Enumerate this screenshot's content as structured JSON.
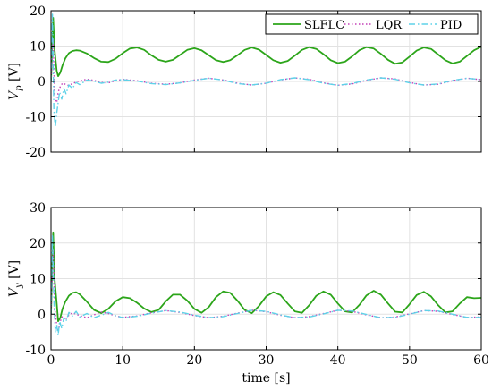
{
  "chart_data": [
    {
      "type": "line",
      "ylabel_main": "V",
      "ylabel_sub": "p",
      "ylabel_unit": "[V]",
      "xlabel": "",
      "xlim": [
        0,
        60
      ],
      "ylim": [
        -20,
        20
      ],
      "xticks": [
        0,
        10,
        20,
        30,
        40,
        50,
        60
      ],
      "xtick_labels_visible": false,
      "yticks": [
        -20,
        -10,
        0,
        10,
        20
      ],
      "ytick_labels": [
        "-20",
        "-10",
        "0",
        "10",
        "20"
      ],
      "grid": true,
      "legend": "top-right",
      "legend_entries": [
        {
          "label": "SLFLC",
          "color": "#2ca51a",
          "style": "solid"
        },
        {
          "label": "LQR",
          "color": "#c440b8",
          "style": "dotted"
        },
        {
          "label": "PID",
          "color": "#5fd2e8",
          "style": "dashdot"
        }
      ],
      "series": [
        {
          "name": "SLFLC",
          "color": "#2ca51a",
          "style": "solid",
          "x": [
            0,
            0.3,
            0.5,
            0.8,
            1.0,
            1.3,
            1.6,
            2.0,
            2.5,
            3.0,
            3.5,
            4.0,
            5.0,
            6.0,
            7.0,
            8.0,
            9.0,
            10.0,
            11.0,
            12.0,
            13.0,
            14.0,
            15.0,
            16.0,
            17.0,
            18.0,
            19.0,
            20.0,
            21.0,
            22.0,
            23.0,
            24.0,
            25.0,
            26.0,
            27.0,
            28.0,
            29.0,
            30.0,
            31.0,
            32.0,
            33.0,
            34.0,
            35.0,
            36.0,
            37.0,
            38.0,
            39.0,
            40.0,
            41.0,
            42.0,
            43.0,
            44.0,
            45.0,
            46.0,
            47.0,
            48.0,
            49.0,
            50.0,
            51.0,
            52.0,
            53.0,
            54.0,
            55.0,
            56.0,
            57.0,
            58.0,
            59.0,
            60.0
          ],
          "y": [
            0,
            18,
            9,
            3,
            1.5,
            2.5,
            4.5,
            6.5,
            8.0,
            8.6,
            8.8,
            8.7,
            7.9,
            6.6,
            5.6,
            5.5,
            6.4,
            8.0,
            9.3,
            9.6,
            8.9,
            7.4,
            6.1,
            5.6,
            6.1,
            7.5,
            8.9,
            9.4,
            8.8,
            7.4,
            6.0,
            5.5,
            6.0,
            7.4,
            8.9,
            9.6,
            9.0,
            7.5,
            6.0,
            5.3,
            5.8,
            7.3,
            8.9,
            9.7,
            9.2,
            7.7,
            6.0,
            5.2,
            5.6,
            7.1,
            8.8,
            9.7,
            9.3,
            7.8,
            6.1,
            5.0,
            5.4,
            7.0,
            8.7,
            9.6,
            9.2,
            7.6,
            6.0,
            5.1,
            5.6,
            7.2,
            8.8,
            9.8
          ]
        },
        {
          "name": "LQR",
          "color": "#c440b8",
          "style": "dotted",
          "x": [
            0,
            0.3,
            0.5,
            0.8,
            1.0,
            1.3,
            1.6,
            2.0,
            2.5,
            3.0,
            4.0,
            5.0,
            6.0,
            7.0,
            8.0,
            9.0,
            10.0,
            12.0,
            14.0,
            16.0,
            18.0,
            20.0,
            22.0,
            24.0,
            26.0,
            28.0,
            30.0,
            32.0,
            34.0,
            36.0,
            38.0,
            40.0,
            42.0,
            44.0,
            46.0,
            48.0,
            50.0,
            52.0,
            54.0,
            56.0,
            58.0,
            60.0
          ],
          "y": [
            0,
            12,
            -4,
            -6,
            -3,
            -1.5,
            -0.5,
            -0.8,
            -1.2,
            -0.6,
            0.2,
            0.6,
            0.3,
            -0.3,
            -0.4,
            0.2,
            0.6,
            0.2,
            -0.5,
            -0.8,
            -0.4,
            0.4,
            0.9,
            0.4,
            -0.5,
            -1.0,
            -0.5,
            0.4,
            1.0,
            0.6,
            -0.4,
            -1.1,
            -0.7,
            0.3,
            1.0,
            0.7,
            -0.3,
            -1.0,
            -0.8,
            0.2,
            0.9,
            0.5
          ]
        },
        {
          "name": "PID",
          "color": "#5fd2e8",
          "style": "dashdot",
          "x": [
            0,
            0.2,
            0.4,
            0.6,
            0.8,
            1.0,
            1.2,
            1.5,
            1.8,
            2.1,
            2.5,
            3.0,
            3.5,
            4.0,
            5.0,
            6.0,
            7.0,
            8.0,
            9.0,
            10.0,
            12.0,
            14.0,
            16.0,
            18.0,
            20.0,
            22.0,
            24.0,
            26.0,
            28.0,
            30.0,
            32.0,
            34.0,
            36.0,
            38.0,
            40.0,
            42.0,
            44.0,
            46.0,
            48.0,
            50.0,
            52.0,
            54.0,
            56.0,
            58.0,
            60.0
          ],
          "y": [
            0,
            19,
            -8,
            -13,
            -9,
            -6,
            -3,
            -5,
            -2,
            -3.5,
            -1,
            -2,
            -0.3,
            -0.9,
            0.4,
            0.1,
            -0.5,
            -0.2,
            0.4,
            0.5,
            0.1,
            -0.6,
            -0.9,
            -0.4,
            0.3,
            0.9,
            0.4,
            -0.6,
            -1.0,
            -0.5,
            0.5,
            1.0,
            0.5,
            -0.5,
            -1.1,
            -0.6,
            0.4,
            1.0,
            0.6,
            -0.4,
            -1.0,
            -0.7,
            0.3,
            0.9,
            0.5
          ]
        }
      ]
    },
    {
      "type": "line",
      "ylabel_main": "V",
      "ylabel_sub": "y",
      "ylabel_unit": "[V]",
      "xlabel": "time [s]",
      "xlim": [
        0,
        60
      ],
      "ylim": [
        -10,
        30
      ],
      "xticks": [
        0,
        10,
        20,
        30,
        40,
        50,
        60
      ],
      "xtick_labels": [
        "0",
        "10",
        "20",
        "30",
        "40",
        "50",
        "60"
      ],
      "xtick_labels_visible": true,
      "yticks": [
        -10,
        0,
        10,
        20,
        30
      ],
      "ytick_labels": [
        "-10",
        "0",
        "10",
        "20",
        "30"
      ],
      "grid": true,
      "series": [
        {
          "name": "SLFLC",
          "color": "#2ca51a",
          "style": "solid",
          "x": [
            0,
            0.3,
            0.5,
            0.8,
            1.0,
            1.3,
            1.6,
            2.0,
            2.5,
            3.0,
            3.5,
            4.0,
            5.0,
            6.0,
            7.0,
            8.0,
            9.0,
            10.0,
            11.0,
            12.0,
            13.0,
            14.0,
            15.0,
            16.0,
            17.0,
            18.0,
            19.0,
            20.0,
            21.0,
            22.0,
            23.0,
            24.0,
            25.0,
            26.0,
            27.0,
            28.0,
            29.0,
            30.0,
            31.0,
            32.0,
            33.0,
            34.0,
            35.0,
            36.0,
            37.0,
            38.0,
            39.0,
            40.0,
            41.0,
            42.0,
            43.0,
            44.0,
            45.0,
            46.0,
            47.0,
            48.0,
            49.0,
            50.0,
            51.0,
            52.0,
            53.0,
            54.0,
            55.0,
            56.0,
            57.0,
            58.0,
            59.0,
            60.0
          ],
          "y": [
            0,
            23,
            10,
            3,
            -2,
            -1,
            1.5,
            3.5,
            5.2,
            6.0,
            6.2,
            5.6,
            3.5,
            1.2,
            0.3,
            1.5,
            3.6,
            4.8,
            4.5,
            3.2,
            1.6,
            0.6,
            1.2,
            3.6,
            5.5,
            5.5,
            3.8,
            1.5,
            0.4,
            2.0,
            4.8,
            6.4,
            6.0,
            3.8,
            1.2,
            0.3,
            2.3,
            5.0,
            6.2,
            5.4,
            3.0,
            0.8,
            0.4,
            2.5,
            5.2,
            6.4,
            5.5,
            3.0,
            0.8,
            0.5,
            2.6,
            5.3,
            6.6,
            5.5,
            3.0,
            0.7,
            0.5,
            2.8,
            5.4,
            6.3,
            5.0,
            2.5,
            0.5,
            0.8,
            3.0,
            4.8,
            4.5,
            4.6
          ]
        },
        {
          "name": "LQR",
          "color": "#c440b8",
          "style": "dotted",
          "x": [
            0,
            0.3,
            0.5,
            0.8,
            1.0,
            1.3,
            1.6,
            2.0,
            2.5,
            3.0,
            4.0,
            5.0,
            6.0,
            7.0,
            8.0,
            9.0,
            10.0,
            12.0,
            14.0,
            16.0,
            18.0,
            20.0,
            22.0,
            24.0,
            26.0,
            28.0,
            30.0,
            32.0,
            34.0,
            36.0,
            38.0,
            40.0,
            42.0,
            44.0,
            46.0,
            48.0,
            50.0,
            52.0,
            54.0,
            56.0,
            58.0,
            60.0
          ],
          "y": [
            0,
            18,
            2,
            -3,
            -5,
            -2,
            -0.5,
            -1.5,
            -0.3,
            0.4,
            -0.4,
            -1.0,
            -0.2,
            0.6,
            0.2,
            -0.5,
            -0.9,
            -0.5,
            0.4,
            1.0,
            0.5,
            -0.4,
            -1.0,
            -0.6,
            0.3,
            1.1,
            0.7,
            -0.3,
            -1.0,
            -0.7,
            0.2,
            1.1,
            0.8,
            -0.2,
            -1.0,
            -0.8,
            0.1,
            1.0,
            0.8,
            -0.1,
            -0.9,
            -0.8
          ]
        },
        {
          "name": "PID",
          "color": "#5fd2e8",
          "style": "dashdot",
          "x": [
            0,
            0.2,
            0.4,
            0.6,
            0.8,
            1.0,
            1.2,
            1.5,
            1.8,
            2.1,
            2.5,
            3.0,
            3.5,
            4.0,
            5.0,
            6.0,
            7.0,
            8.0,
            9.0,
            10.0,
            12.0,
            14.0,
            16.0,
            18.0,
            20.0,
            22.0,
            24.0,
            26.0,
            28.0,
            30.0,
            32.0,
            34.0,
            36.0,
            38.0,
            40.0,
            42.0,
            44.0,
            46.0,
            48.0,
            50.0,
            52.0,
            54.0,
            56.0,
            58.0,
            60.0
          ],
          "y": [
            0,
            22,
            4,
            -5,
            -3,
            -6,
            -2,
            -4,
            -1,
            -2,
            0.5,
            -0.5,
            0.8,
            -0.8,
            0.2,
            -1.0,
            -0.3,
            0.5,
            -0.4,
            -1.0,
            -0.6,
            0.3,
            1.0,
            0.6,
            -0.3,
            -1.0,
            -0.7,
            0.2,
            1.1,
            0.8,
            -0.2,
            -1.0,
            -0.8,
            0.1,
            1.1,
            0.9,
            -0.1,
            -1.0,
            -0.9,
            0.0,
            1.0,
            0.9,
            0.0,
            -0.9,
            -0.9
          ]
        }
      ]
    }
  ]
}
